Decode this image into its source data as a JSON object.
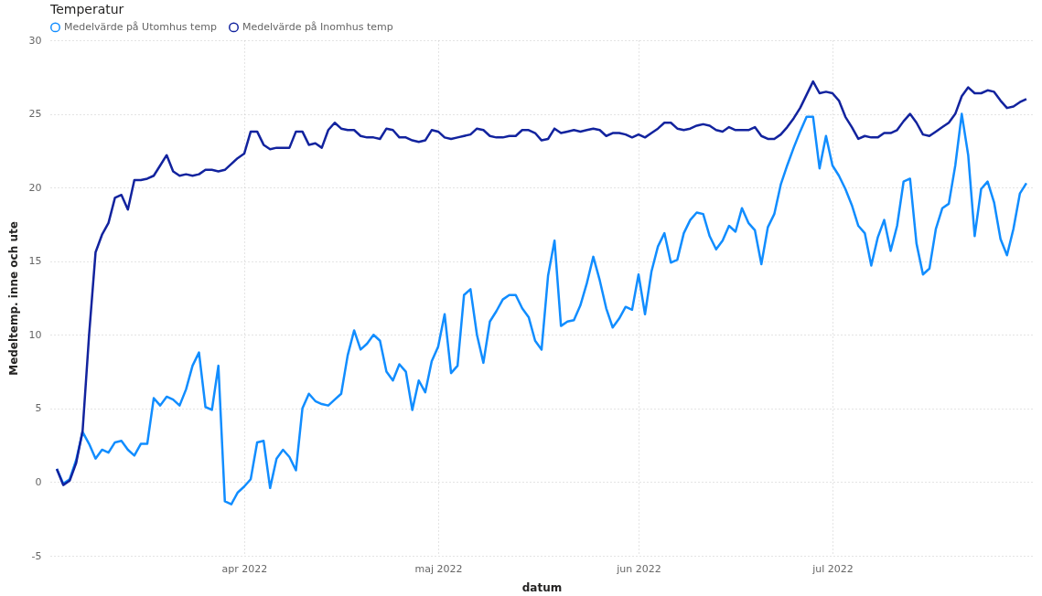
{
  "chart_data": {
    "type": "line",
    "title": "Temperatur",
    "xlabel": "datum",
    "ylabel": "Medeltemp. inne och ute",
    "x": [
      "2022-03-03",
      "2022-03-04",
      "2022-03-05",
      "2022-03-06",
      "2022-03-07",
      "2022-03-08",
      "2022-03-09",
      "2022-03-10",
      "2022-03-11",
      "2022-03-12",
      "2022-03-13",
      "2022-03-14",
      "2022-03-15",
      "2022-03-16",
      "2022-03-17",
      "2022-03-18",
      "2022-03-19",
      "2022-03-20",
      "2022-03-21",
      "2022-03-22",
      "2022-03-23",
      "2022-03-24",
      "2022-03-25",
      "2022-03-26",
      "2022-03-27",
      "2022-03-28",
      "2022-03-29",
      "2022-03-30",
      "2022-03-31",
      "2022-04-01",
      "2022-04-02",
      "2022-04-03",
      "2022-04-04",
      "2022-04-05",
      "2022-04-06",
      "2022-04-07",
      "2022-04-08",
      "2022-04-09",
      "2022-04-10",
      "2022-04-11",
      "2022-04-12",
      "2022-04-13",
      "2022-04-14",
      "2022-04-15",
      "2022-04-16",
      "2022-04-17",
      "2022-04-18",
      "2022-04-19",
      "2022-04-20",
      "2022-04-21",
      "2022-04-22",
      "2022-04-23",
      "2022-04-24",
      "2022-04-25",
      "2022-04-26",
      "2022-04-27",
      "2022-04-28",
      "2022-04-29",
      "2022-04-30",
      "2022-05-01",
      "2022-05-02",
      "2022-05-03",
      "2022-05-04",
      "2022-05-05",
      "2022-05-06",
      "2022-05-07",
      "2022-05-08",
      "2022-05-09",
      "2022-05-10",
      "2022-05-11",
      "2022-05-12",
      "2022-05-13",
      "2022-05-14",
      "2022-05-15",
      "2022-05-16",
      "2022-05-17",
      "2022-05-18",
      "2022-05-19",
      "2022-05-20",
      "2022-05-21",
      "2022-05-22",
      "2022-05-23",
      "2022-05-24",
      "2022-05-25",
      "2022-05-26",
      "2022-05-27",
      "2022-05-28",
      "2022-05-29",
      "2022-05-30",
      "2022-05-31",
      "2022-06-01",
      "2022-06-02",
      "2022-06-03",
      "2022-06-04",
      "2022-06-05",
      "2022-06-06",
      "2022-06-07",
      "2022-06-08",
      "2022-06-09",
      "2022-06-10",
      "2022-06-11",
      "2022-06-12",
      "2022-06-13",
      "2022-06-14",
      "2022-06-15",
      "2022-06-16",
      "2022-06-17",
      "2022-06-18",
      "2022-06-19",
      "2022-06-20",
      "2022-06-21",
      "2022-06-22",
      "2022-06-23",
      "2022-06-24",
      "2022-06-25",
      "2022-06-26",
      "2022-06-27",
      "2022-06-28",
      "2022-06-29",
      "2022-06-30",
      "2022-07-01",
      "2022-07-02",
      "2022-07-03",
      "2022-07-04",
      "2022-07-05",
      "2022-07-06",
      "2022-07-07",
      "2022-07-08",
      "2022-07-09",
      "2022-07-10",
      "2022-07-11",
      "2022-07-12",
      "2022-07-13",
      "2022-07-14",
      "2022-07-15",
      "2022-07-16",
      "2022-07-17",
      "2022-07-18",
      "2022-07-19",
      "2022-07-20",
      "2022-07-21",
      "2022-07-22",
      "2022-07-23",
      "2022-07-24",
      "2022-07-25",
      "2022-07-26",
      "2022-07-27",
      "2022-07-28",
      "2022-07-29",
      "2022-07-30",
      "2022-07-31"
    ],
    "series": [
      {
        "name": "Medelvärde på Utomhus temp",
        "color": "#118dff",
        "values": [
          0.9,
          -0.1,
          0.2,
          1.5,
          3.4,
          2.6,
          1.6,
          2.2,
          2.0,
          2.7,
          2.8,
          2.2,
          1.8,
          2.6,
          2.6,
          5.7,
          5.2,
          5.8,
          5.6,
          5.2,
          6.3,
          7.9,
          8.8,
          5.1,
          4.9,
          7.9,
          -1.3,
          -1.5,
          -0.7,
          -0.3,
          0.2,
          2.7,
          2.8,
          -0.4,
          1.6,
          2.2,
          1.7,
          0.8,
          5.0,
          6.0,
          5.5,
          5.3,
          5.2,
          5.6,
          6.0,
          8.6,
          10.3,
          9.0,
          9.4,
          10.0,
          9.6,
          7.5,
          6.9,
          8.0,
          7.5,
          4.9,
          6.9,
          6.1,
          8.2,
          9.2,
          11.4,
          7.4,
          7.9,
          12.7,
          13.1,
          10.0,
          8.1,
          10.9,
          11.6,
          12.4,
          12.7,
          12.7,
          11.8,
          11.2,
          9.6,
          9.0,
          14.0,
          16.4,
          10.6,
          10.9,
          11.0,
          12.0,
          13.5,
          15.3,
          13.7,
          11.8,
          10.5,
          11.1,
          11.9,
          11.7,
          14.1,
          11.4,
          14.3,
          16.0,
          16.9,
          14.9,
          15.1,
          16.9,
          17.8,
          18.3,
          18.2,
          16.7,
          15.8,
          16.4,
          17.4,
          17.0,
          18.6,
          17.6,
          17.1,
          14.8,
          17.3,
          18.2,
          20.2,
          21.5,
          22.7,
          23.8,
          24.8,
          24.8,
          21.3,
          23.5,
          21.5,
          20.8,
          19.9,
          18.8,
          17.4,
          16.9,
          14.7,
          16.6,
          17.8,
          15.7,
          17.4,
          20.4,
          20.6,
          16.2,
          14.1,
          14.5,
          17.2,
          18.6,
          18.9,
          21.5,
          25.0,
          22.2,
          16.7,
          19.9,
          20.4,
          19.0,
          16.5,
          15.4,
          17.2,
          19.6,
          20.3
        ]
      },
      {
        "name": "Medelvärde på Inomhus temp",
        "color": "#12239e",
        "values": [
          0.9,
          -0.2,
          0.1,
          1.3,
          3.5,
          10.0,
          15.6,
          16.8,
          17.6,
          19.3,
          19.5,
          18.5,
          20.5,
          20.5,
          20.6,
          20.8,
          21.5,
          22.2,
          21.1,
          20.8,
          20.9,
          20.8,
          20.9,
          21.2,
          21.2,
          21.1,
          21.2,
          21.6,
          22.0,
          22.3,
          23.8,
          23.8,
          22.9,
          22.6,
          22.7,
          22.7,
          22.7,
          23.8,
          23.8,
          22.9,
          23.0,
          22.7,
          23.9,
          24.4,
          24.0,
          23.9,
          23.9,
          23.5,
          23.4,
          23.4,
          23.3,
          24.0,
          23.9,
          23.4,
          23.4,
          23.2,
          23.1,
          23.2,
          23.9,
          23.8,
          23.4,
          23.3,
          23.4,
          23.5,
          23.6,
          24.0,
          23.9,
          23.5,
          23.4,
          23.4,
          23.5,
          23.5,
          23.9,
          23.9,
          23.7,
          23.2,
          23.3,
          24.0,
          23.7,
          23.8,
          23.9,
          23.8,
          23.9,
          24.0,
          23.9,
          23.5,
          23.7,
          23.7,
          23.6,
          23.4,
          23.6,
          23.4,
          23.7,
          24.0,
          24.4,
          24.4,
          24.0,
          23.9,
          24.0,
          24.2,
          24.3,
          24.2,
          23.9,
          23.8,
          24.1,
          23.9,
          23.9,
          23.9,
          24.1,
          23.5,
          23.3,
          23.3,
          23.6,
          24.1,
          24.7,
          25.4,
          26.3,
          27.2,
          26.4,
          26.5,
          26.4,
          25.9,
          24.8,
          24.1,
          23.3,
          23.5,
          23.4,
          23.4,
          23.7,
          23.7,
          23.9,
          24.5,
          25.0,
          24.4,
          23.6,
          23.5,
          23.8,
          24.1,
          24.4,
          25.0,
          26.2,
          26.8,
          26.4,
          26.4,
          26.6,
          26.5,
          25.9,
          25.4,
          25.5,
          25.8,
          26.0
        ]
      }
    ],
    "xlim": [
      "2022-03-02",
      "2022-08-01"
    ],
    "xticks": [
      {
        "value": "2022-04-01",
        "label": "apr 2022"
      },
      {
        "value": "2022-05-01",
        "label": "maj 2022"
      },
      {
        "value": "2022-06-01",
        "label": "jun 2022"
      },
      {
        "value": "2022-07-01",
        "label": "jul 2022"
      }
    ],
    "ylim": [
      -5,
      30
    ],
    "yticks": [
      -5,
      0,
      5,
      10,
      15,
      20,
      25,
      30
    ],
    "grid": true,
    "legend": "top left"
  }
}
